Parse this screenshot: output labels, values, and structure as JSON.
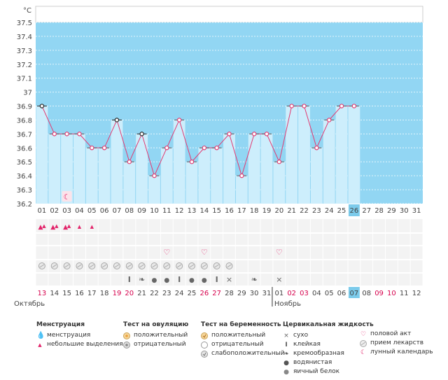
{
  "chart_data": {
    "type": "line",
    "title": "",
    "unit": "°C",
    "ylabel": "°C",
    "ylim": [
      36.2,
      37.5
    ],
    "yticks": [
      "36.2",
      "36.3",
      "36.4",
      "36.5",
      "36.6",
      "36.7",
      "36.8",
      "36.9",
      "37",
      "37.1",
      "37.2",
      "37.3",
      "37.4",
      "37.5"
    ],
    "cycle_days": [
      "01",
      "02",
      "03",
      "04",
      "05",
      "06",
      "07",
      "08",
      "09",
      "10",
      "11",
      "12",
      "13",
      "14",
      "15",
      "16",
      "17",
      "18",
      "19",
      "20",
      "21",
      "22",
      "23",
      "24",
      "25",
      "26",
      "27",
      "28",
      "29",
      "30",
      "31"
    ],
    "today_index": 25,
    "temperatures": [
      36.9,
      36.7,
      36.7,
      36.7,
      36.6,
      36.6,
      36.8,
      36.5,
      36.7,
      36.4,
      36.6,
      36.8,
      36.5,
      36.6,
      36.6,
      36.7,
      36.4,
      36.7,
      36.7,
      36.5,
      36.9,
      36.9,
      36.6,
      36.8,
      36.9,
      36.9
    ],
    "excluded_points": [
      0,
      6,
      8
    ],
    "dates": [
      "13",
      "14",
      "15",
      "16",
      "17",
      "18",
      "19",
      "20",
      "21",
      "22",
      "23",
      "24",
      "25",
      "26",
      "27",
      "28",
      "29",
      "30",
      "31",
      "01",
      "02",
      "03",
      "04",
      "05",
      "06",
      "07",
      "08",
      "09",
      "10",
      "11",
      "12"
    ],
    "weekend_indices": [
      0,
      6,
      7,
      13,
      14,
      20,
      21,
      27,
      28
    ],
    "today_date_index": 25,
    "months": [
      {
        "label": "Октябрь",
        "start_index": 0
      },
      {
        "label": "Ноябрь",
        "start_index": 19
      }
    ],
    "menstruation_days": [
      0,
      1,
      2
    ],
    "spotting_days": [
      3,
      4
    ],
    "lunar_day": 2,
    "intercourse_days": [
      10,
      13,
      19
    ],
    "medication_days": [
      0,
      1,
      2,
      3,
      4,
      5,
      6,
      7,
      8,
      9,
      10,
      11,
      12,
      13,
      14,
      15
    ],
    "cervical": [
      {
        "index": 7,
        "type": "sticky"
      },
      {
        "index": 8,
        "type": "creamy"
      },
      {
        "index": 9,
        "type": "watery"
      },
      {
        "index": 10,
        "type": "watery"
      },
      {
        "index": 11,
        "type": "sticky"
      },
      {
        "index": 12,
        "type": "watery"
      },
      {
        "index": 13,
        "type": "watery"
      },
      {
        "index": 14,
        "type": "sticky"
      },
      {
        "index": 15,
        "type": "dry"
      },
      {
        "index": 17,
        "type": "creamy"
      },
      {
        "index": 19,
        "type": "dry"
      }
    ]
  },
  "legend": {
    "menstruation": {
      "title": "Менструация",
      "items": [
        "менструация",
        "небольшие выделения"
      ]
    },
    "ovulation_test": {
      "title": "Тест на овуляцию",
      "items": [
        "положительный",
        "отрицательный"
      ]
    },
    "pregnancy_test": {
      "title": "Тест на беременность",
      "items": [
        "положительный",
        "отрицательный",
        "слабоположительный"
      ]
    },
    "cervical_fluid": {
      "title": "Цервикальная жидкость",
      "items": [
        "сухо",
        "клейкая",
        "кремообразная",
        "водянистая",
        "яичный белок"
      ]
    },
    "other": {
      "items": [
        "половой акт",
        "прием лекарств",
        "лунный календарь"
      ]
    }
  },
  "colors": {
    "band": "#92d6f3",
    "bar": "#cdeefc",
    "line": "#e23a72",
    "today": "#7ccbeb",
    "weekend": "#d6004c"
  }
}
